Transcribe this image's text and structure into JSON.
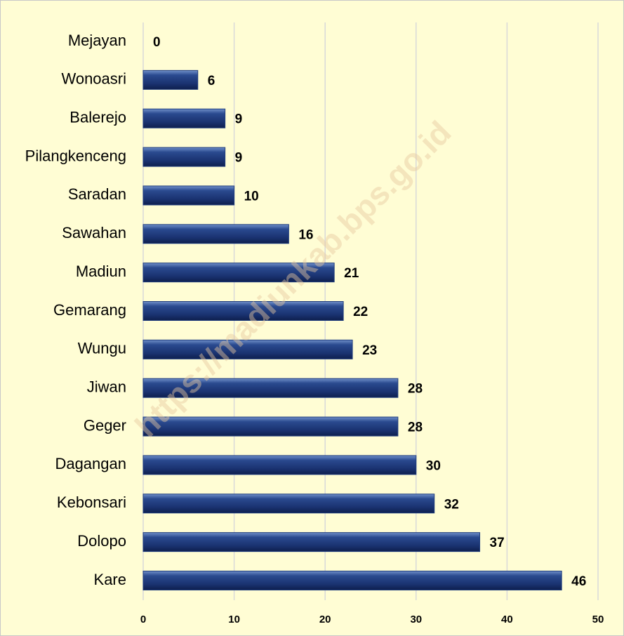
{
  "chart_data": {
    "type": "bar",
    "orientation": "horizontal",
    "categories": [
      "Mejayan",
      "Wonoasri",
      "Balerejo",
      "Pilangkenceng",
      "Saradan",
      "Sawahan",
      "Madiun",
      "Gemarang",
      "Wungu",
      "Jiwan",
      "Geger",
      "Dagangan",
      "Kebonsari",
      "Dolopo",
      "Kare"
    ],
    "values": [
      0,
      6,
      9,
      9,
      10,
      16,
      21,
      22,
      23,
      28,
      28,
      30,
      32,
      37,
      46
    ],
    "color": "#1f3c7e",
    "xlim": [
      0,
      50
    ],
    "xticks": [
      0,
      10,
      20,
      30,
      40,
      50
    ],
    "grid": true,
    "watermark": "https://madiunkab.bps.go.id"
  }
}
